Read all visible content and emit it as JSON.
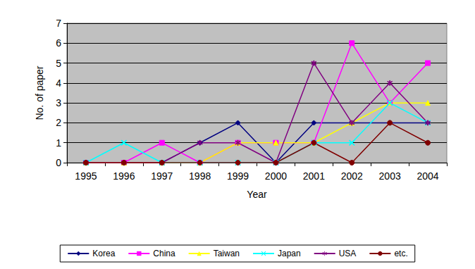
{
  "chart_data": {
    "type": "line",
    "x_label": "Year",
    "y_label": "No. of paper",
    "categories": [
      "1995",
      "1996",
      "1997",
      "1998",
      "1999",
      "2000",
      "2001",
      "2002",
      "2003",
      "2004"
    ],
    "series": [
      {
        "name": "Korea",
        "color": "#000080",
        "marker": "diamond",
        "values": [
          0,
          0,
          0,
          1,
          2,
          0,
          2,
          2,
          2,
          2
        ]
      },
      {
        "name": "China",
        "color": "#ff00ff",
        "marker": "square",
        "values": [
          0,
          0,
          1,
          0,
          1,
          1,
          1,
          6,
          3,
          5
        ]
      },
      {
        "name": "Taiwan",
        "color": "#ffff00",
        "marker": "triangle",
        "values": [
          0,
          0,
          0,
          0,
          1,
          1,
          1,
          2,
          3,
          3
        ]
      },
      {
        "name": "Japan",
        "color": "#00ffff",
        "marker": "x",
        "values": [
          0,
          1,
          0,
          0,
          0,
          0,
          1,
          1,
          3,
          2
        ]
      },
      {
        "name": "USA",
        "color": "#800080",
        "marker": "star",
        "values": [
          0,
          0,
          0,
          1,
          1,
          0,
          5,
          2,
          4,
          2
        ]
      },
      {
        "name": "etc.",
        "color": "#800000",
        "marker": "circle",
        "values": [
          0,
          0,
          0,
          0,
          0,
          0,
          1,
          0,
          2,
          1
        ]
      }
    ],
    "ylim": [
      0,
      7
    ],
    "yticks": [
      0,
      1,
      2,
      3,
      4,
      5,
      6,
      7
    ],
    "grid": true,
    "legend": "bottom"
  }
}
